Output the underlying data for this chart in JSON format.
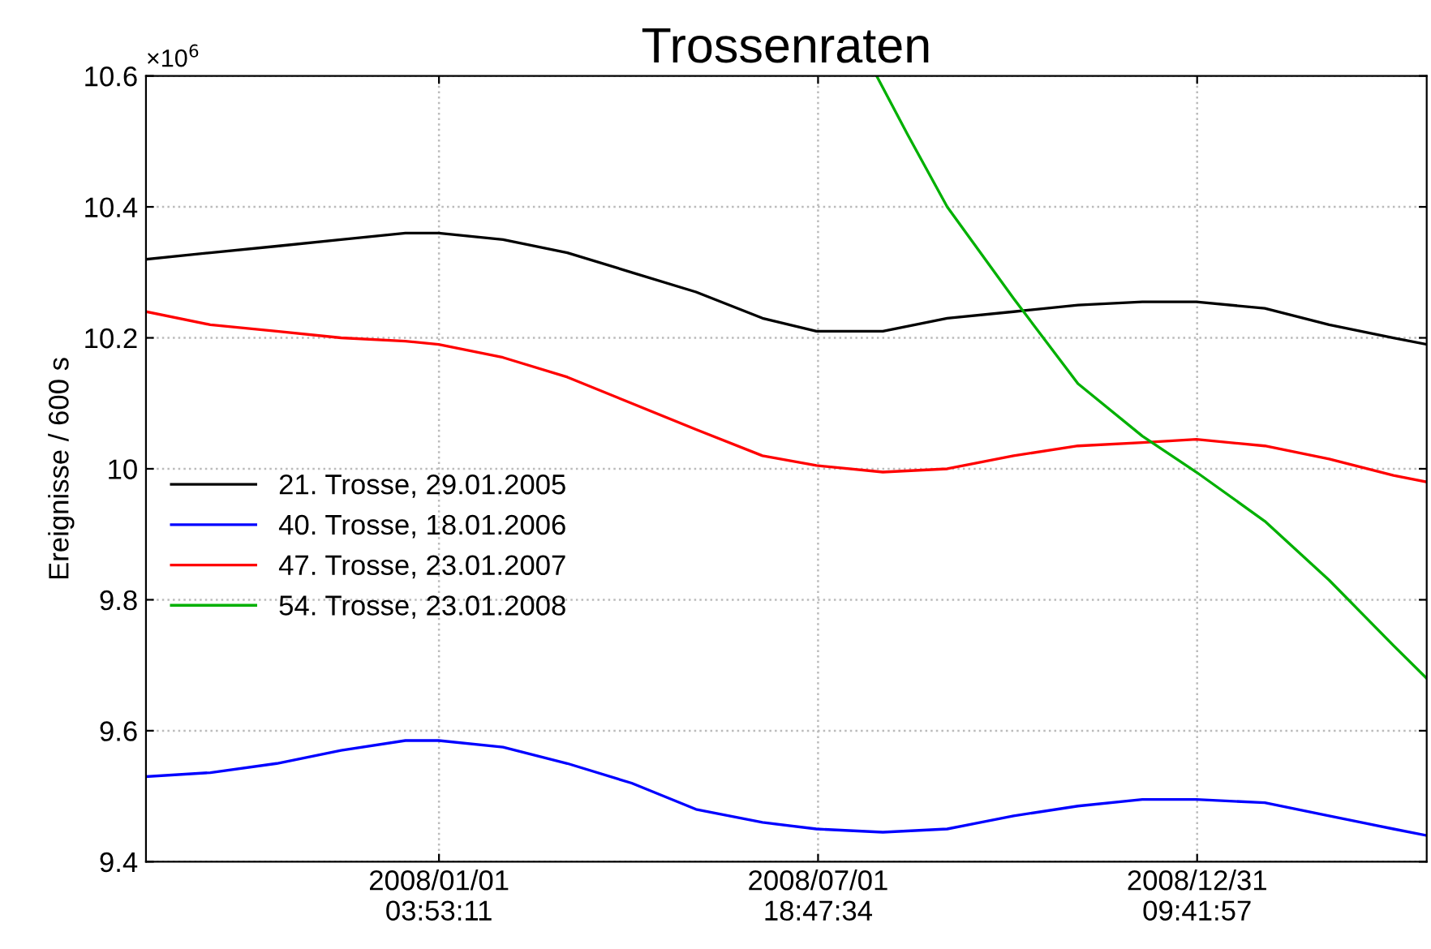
{
  "chart_data": {
    "type": "line",
    "title": "Trossenraten",
    "ylabel": "Ereignisse / 600 s",
    "annotations": [
      "×10$^{6}$"
    ],
    "x": [
      "2007-08-13",
      "2007-09-13",
      "2007-10-15",
      "2007-11-15",
      "2007-12-16",
      "2008-01-01",
      "2008-02-01",
      "2008-03-03",
      "2008-04-03",
      "2008-05-04",
      "2008-06-05",
      "2008-07-01",
      "2008-08-02",
      "2008-09-02",
      "2008-10-04",
      "2008-11-04",
      "2008-12-05",
      "2008-12-31",
      "2009-02-02",
      "2009-03-05",
      "2009-04-05",
      "2009-04-21"
    ],
    "series": [
      {
        "name": "21. Trosse, 29.01.2005",
        "color": "#000000",
        "values": [
          10.32,
          10.33,
          10.34,
          10.35,
          10.36,
          10.36,
          10.35,
          10.33,
          10.3,
          10.27,
          10.23,
          10.21,
          10.21,
          10.23,
          10.24,
          10.25,
          10.255,
          10.255,
          10.245,
          10.22,
          10.2,
          10.19
        ]
      },
      {
        "name": "40. Trosse, 18.01.2006",
        "color": "#0000ff",
        "values": [
          9.53,
          9.536,
          9.55,
          9.57,
          9.585,
          9.585,
          9.575,
          9.55,
          9.52,
          9.48,
          9.46,
          9.45,
          9.445,
          9.45,
          9.47,
          9.485,
          9.495,
          9.495,
          9.49,
          9.47,
          9.45,
          9.44
        ]
      },
      {
        "name": "47. Trosse, 23.01.2007",
        "color": "#ff0000",
        "values": [
          10.24,
          10.22,
          10.21,
          10.2,
          10.195,
          10.19,
          10.17,
          10.14,
          10.1,
          10.06,
          10.02,
          10.005,
          9.995,
          10.0,
          10.02,
          10.035,
          10.04,
          10.045,
          10.035,
          10.015,
          9.99,
          9.98
        ]
      },
      {
        "name": "54. Trosse, 23.01.2008",
        "color": "#00b000",
        "x": [
          "2008-07-30",
          "2008-08-14",
          "2008-09-02",
          "2008-10-04",
          "2008-11-04",
          "2008-12-05",
          "2008-12-31",
          "2009-02-02",
          "2009-03-05",
          "2009-04-05",
          "2009-04-21"
        ],
        "values": [
          10.6,
          10.51,
          10.4,
          10.26,
          10.13,
          10.05,
          9.995,
          9.92,
          9.83,
          9.73,
          9.68
        ]
      }
    ],
    "xlim": [
      "2007-08-13",
      "2009-04-21"
    ],
    "xticks": [
      {
        "value": "2008-01-01T03:53",
        "label": "2008/01/01\n03:53:11"
      },
      {
        "value": "2008-07-01T18:47",
        "label": "2008/07/01\n18:47:34"
      },
      {
        "value": "2008-12-31T09:41",
        "label": "2008/12/31\n09:41:57"
      }
    ],
    "ylim": [
      9.4,
      10.6
    ],
    "yticks": [
      9.4,
      9.6,
      9.8,
      10,
      10.2,
      10.4,
      10.6
    ],
    "grid": true,
    "legend": "center left",
    "line_style": "solid",
    "marker": "none"
  }
}
